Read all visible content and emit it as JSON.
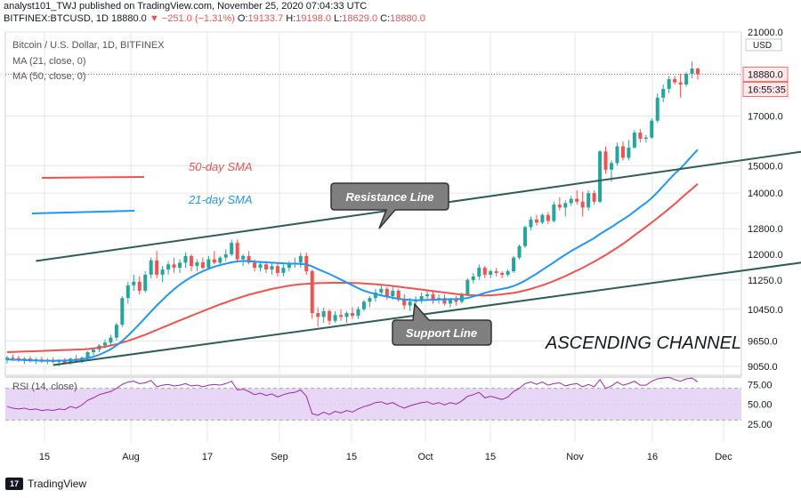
{
  "header": {
    "published": "analyst101_TWJ published on TradingView.com, November 25, 2020 07:04:33 UTC",
    "symbol": "BITFINEX:BTCUSD, 1D",
    "last": "18880.0",
    "change": "−251.0 (−1.31%)",
    "o_label": "O:",
    "o": "19133.7",
    "h_label": "H:",
    "h": "19198.0",
    "l_label": "L:",
    "l": "18629.0",
    "c_label": "C:",
    "c": "18880.0"
  },
  "legend": {
    "title": "Bitcoin / U.S. Dollar, 1D, BITFINEX",
    "ma21": "MA (21, close, 0)",
    "ma50": "MA (50, close, 0)"
  },
  "footer": {
    "brand": "TradingView",
    "logo_text": "17"
  },
  "colors": {
    "up": "#26a69a",
    "down": "#ef5350",
    "ma21": "#2196f3",
    "ma50": "#ef5350",
    "channel": "#2e5e55",
    "rsi_line": "#9c27b0",
    "rsi_band": "#e7d6f5",
    "grid": "#e6e6e6"
  },
  "chart_data": {
    "type": "candlestick",
    "price_axis": {
      "unit": "USD",
      "ticks": [
        "21000.0",
        "17000.0",
        "15000.0",
        "14000.0",
        "12800.0",
        "12000.0",
        "11250.0",
        "10450.0",
        "9650.0",
        "9050.0"
      ],
      "scale": "log"
    },
    "current_price_label": "18880.0",
    "countdown_label": "16:55:35",
    "x_ticks": [
      "15",
      "Aug",
      "17",
      "Sep",
      "15",
      "Oct",
      "15",
      "Nov",
      "16",
      "Dec"
    ],
    "candles": [
      [
        9200,
        9300,
        9120,
        9250
      ],
      [
        9250,
        9320,
        9170,
        9240
      ],
      [
        9240,
        9300,
        9150,
        9190
      ],
      [
        9190,
        9260,
        9110,
        9230
      ],
      [
        9230,
        9290,
        9140,
        9170
      ],
      [
        9170,
        9250,
        9110,
        9210
      ],
      [
        9210,
        9270,
        9130,
        9160
      ],
      [
        9160,
        9240,
        9100,
        9200
      ],
      [
        9200,
        9260,
        9120,
        9150
      ],
      [
        9150,
        9220,
        9060,
        9180
      ],
      [
        9180,
        9240,
        9110,
        9130
      ],
      [
        9130,
        9250,
        9090,
        9230
      ],
      [
        9230,
        9310,
        9150,
        9170
      ],
      [
        9170,
        9280,
        9120,
        9250
      ],
      [
        9250,
        9400,
        9200,
        9380
      ],
      [
        9380,
        9480,
        9300,
        9440
      ],
      [
        9440,
        9570,
        9380,
        9540
      ],
      [
        9540,
        9680,
        9470,
        9610
      ],
      [
        9610,
        9800,
        9550,
        9730
      ],
      [
        9730,
        10100,
        9660,
        10050
      ],
      [
        10050,
        10800,
        9990,
        10750
      ],
      [
        10750,
        11200,
        10600,
        11100
      ],
      [
        11100,
        11400,
        10950,
        11200
      ],
      [
        11200,
        11350,
        10850,
        10950
      ],
      [
        10950,
        11500,
        10900,
        11400
      ],
      [
        11400,
        11900,
        11300,
        11820
      ],
      [
        11820,
        12100,
        11300,
        11400
      ],
      [
        11400,
        11650,
        11180,
        11550
      ],
      [
        11550,
        11800,
        11400,
        11700
      ],
      [
        11700,
        11900,
        11450,
        11600
      ],
      [
        11600,
        11850,
        11450,
        11750
      ],
      [
        11750,
        12050,
        11600,
        11950
      ],
      [
        11950,
        12000,
        11500,
        11650
      ],
      [
        11650,
        11850,
        11500,
        11760
      ],
      [
        11760,
        11900,
        11550,
        11600
      ],
      [
        11600,
        11950,
        11550,
        11850
      ],
      [
        11850,
        12100,
        11700,
        11750
      ],
      [
        11750,
        11950,
        11650,
        11900
      ],
      [
        11900,
        12150,
        11800,
        12000
      ],
      [
        12000,
        12450,
        11950,
        12350
      ],
      [
        12350,
        12450,
        11750,
        11850
      ],
      [
        11850,
        12000,
        11650,
        11950
      ],
      [
        11950,
        12100,
        11700,
        11750
      ],
      [
        11750,
        11850,
        11500,
        11600
      ],
      [
        11600,
        11800,
        11500,
        11700
      ],
      [
        11700,
        11800,
        11450,
        11550
      ],
      [
        11550,
        11750,
        11400,
        11650
      ],
      [
        11650,
        11720,
        11350,
        11450
      ],
      [
        11450,
        11700,
        11350,
        11600
      ],
      [
        11600,
        11800,
        11500,
        11700
      ],
      [
        11700,
        11900,
        11600,
        11750
      ],
      [
        11750,
        12050,
        11600,
        11950
      ],
      [
        11950,
        12050,
        11400,
        11500
      ],
      [
        11500,
        11550,
        10200,
        10350
      ],
      [
        10350,
        10500,
        10000,
        10250
      ],
      [
        10250,
        10500,
        10100,
        10400
      ],
      [
        10400,
        10450,
        10050,
        10150
      ],
      [
        10150,
        10400,
        10100,
        10300
      ],
      [
        10300,
        10450,
        10150,
        10250
      ],
      [
        10250,
        10400,
        10100,
        10350
      ],
      [
        10350,
        10500,
        10200,
        10280
      ],
      [
        10280,
        10520,
        10200,
        10450
      ],
      [
        10450,
        10700,
        10400,
        10650
      ],
      [
        10650,
        10800,
        10500,
        10750
      ],
      [
        10750,
        11000,
        10650,
        10900
      ],
      [
        10900,
        11100,
        10800,
        11000
      ],
      [
        11000,
        11050,
        10700,
        10800
      ],
      [
        10800,
        11050,
        10700,
        10950
      ],
      [
        10950,
        11000,
        10650,
        10700
      ],
      [
        10700,
        10850,
        10450,
        10550
      ],
      [
        10550,
        10750,
        10400,
        10650
      ],
      [
        10650,
        10800,
        10500,
        10700
      ],
      [
        10700,
        10900,
        10600,
        10800
      ],
      [
        10800,
        10950,
        10700,
        10850
      ],
      [
        10850,
        10950,
        10600,
        10700
      ],
      [
        10700,
        10850,
        10600,
        10750
      ],
      [
        10750,
        10850,
        10550,
        10600
      ],
      [
        10600,
        10750,
        10500,
        10700
      ],
      [
        10700,
        10800,
        10550,
        10650
      ],
      [
        10650,
        10900,
        10600,
        10850
      ],
      [
        10850,
        11300,
        10800,
        11250
      ],
      [
        11250,
        11450,
        11150,
        11350
      ],
      [
        11350,
        11700,
        11250,
        11600
      ],
      [
        11600,
        11650,
        11300,
        11400
      ],
      [
        11400,
        11550,
        11300,
        11500
      ],
      [
        11500,
        11600,
        11350,
        11450
      ],
      [
        11450,
        11500,
        11300,
        11400
      ],
      [
        11400,
        11550,
        11350,
        11500
      ],
      [
        11500,
        11950,
        11450,
        11900
      ],
      [
        11900,
        12300,
        11850,
        12250
      ],
      [
        12250,
        12900,
        12200,
        12850
      ],
      [
        12850,
        13200,
        12750,
        13100
      ],
      [
        13100,
        13250,
        12900,
        13000
      ],
      [
        13000,
        13300,
        12950,
        13250
      ],
      [
        13250,
        13350,
        12950,
        13050
      ],
      [
        13050,
        13700,
        13000,
        13600
      ],
      [
        13600,
        13850,
        13400,
        13500
      ],
      [
        13500,
        13750,
        13200,
        13650
      ],
      [
        13650,
        13900,
        13550,
        13800
      ],
      [
        13800,
        14100,
        13600,
        13700
      ],
      [
        13700,
        14050,
        13200,
        13500
      ],
      [
        13500,
        14100,
        13400,
        14000
      ],
      [
        14000,
        14100,
        13600,
        13700
      ],
      [
        13700,
        15600,
        13650,
        15550
      ],
      [
        15550,
        15750,
        14700,
        14850
      ],
      [
        14850,
        15200,
        14400,
        15100
      ],
      [
        15100,
        15900,
        15000,
        15750
      ],
      [
        15750,
        15950,
        15200,
        15300
      ],
      [
        15300,
        16000,
        15200,
        15700
      ],
      [
        15700,
        16400,
        15650,
        16300
      ],
      [
        16300,
        16450,
        15900,
        16050
      ],
      [
        16050,
        16200,
        15900,
        16100
      ],
      [
        16100,
        16900,
        16050,
        16800
      ],
      [
        16800,
        18000,
        16700,
        17800
      ],
      [
        17800,
        18400,
        17600,
        18200
      ],
      [
        18200,
        18800,
        18000,
        18650
      ],
      [
        18650,
        18800,
        18400,
        18500
      ],
      [
        18500,
        18900,
        17800,
        18400
      ],
      [
        18400,
        19000,
        18300,
        18900
      ],
      [
        18900,
        19500,
        18700,
        19150
      ],
      [
        19150,
        19200,
        18630,
        18880
      ]
    ],
    "ma21": [
      9210,
      9205,
      9200,
      9195,
      9190,
      9185,
      9180,
      9180,
      9180,
      9180,
      9185,
      9190,
      9200,
      9215,
      9240,
      9270,
      9320,
      9380,
      9450,
      9540,
      9650,
      9780,
      9920,
      10070,
      10230,
      10390,
      10550,
      10700,
      10850,
      10990,
      11120,
      11230,
      11330,
      11420,
      11500,
      11570,
      11630,
      11680,
      11720,
      11760,
      11790,
      11800,
      11800,
      11780,
      11770,
      11760,
      11750,
      11740,
      11730,
      11720,
      11720,
      11710,
      11700,
      11640,
      11560,
      11490,
      11420,
      11340,
      11260,
      11180,
      11100,
      11020,
      10950,
      10900,
      10860,
      10820,
      10790,
      10760,
      10730,
      10710,
      10700,
      10690,
      10690,
      10700,
      10700,
      10710,
      10710,
      10720,
      10720,
      10730,
      10750,
      10790,
      10840,
      10890,
      10930,
      10970,
      11000,
      11030,
      11080,
      11150,
      11230,
      11330,
      11430,
      11540,
      11650,
      11760,
      11880,
      11990,
      12100,
      12200,
      12300,
      12400,
      12500,
      12630,
      12740,
      12850,
      12980,
      13100,
      13220,
      13370,
      13520,
      13660,
      13830,
      14030,
      14250,
      14480,
      14700,
      14900,
      15130,
      15380,
      15620
    ],
    "ma50": [
      9380,
      9385,
      9390,
      9395,
      9400,
      9405,
      9410,
      9415,
      9420,
      9425,
      9430,
      9435,
      9440,
      9445,
      9455,
      9470,
      9490,
      9510,
      9540,
      9570,
      9610,
      9650,
      9700,
      9750,
      9800,
      9860,
      9920,
      9980,
      10040,
      10100,
      10160,
      10220,
      10280,
      10340,
      10400,
      10460,
      10520,
      10580,
      10630,
      10690,
      10740,
      10790,
      10840,
      10880,
      10920,
      10960,
      11000,
      11030,
      11060,
      11090,
      11110,
      11130,
      11140,
      11150,
      11160,
      11165,
      11170,
      11170,
      11170,
      11170,
      11165,
      11160,
      11150,
      11140,
      11130,
      11115,
      11100,
      11080,
      11060,
      11040,
      11020,
      11000,
      10980,
      10960,
      10940,
      10920,
      10900,
      10880,
      10860,
      10845,
      10830,
      10825,
      10820,
      10820,
      10825,
      10835,
      10850,
      10870,
      10890,
      10920,
      10960,
      11000,
      11050,
      11100,
      11160,
      11220,
      11290,
      11360,
      11440,
      11520,
      11600,
      11690,
      11780,
      11880,
      11980,
      12090,
      12200,
      12320,
      12450,
      12590,
      12720,
      12860,
      13000,
      13150,
      13300,
      13460,
      13620,
      13800,
      13980,
      14150,
      14330
    ],
    "rsi": {
      "label": "RSI (14, close)",
      "ticks": [
        "75.00",
        "50.00",
        "25.00"
      ],
      "band": [
        30,
        70
      ],
      "values": [
        47,
        45,
        44,
        45,
        43,
        44,
        42,
        43,
        42,
        44,
        43,
        47,
        45,
        49,
        55,
        58,
        62,
        64,
        66,
        70,
        75,
        78,
        79,
        76,
        77,
        80,
        72,
        74,
        75,
        73,
        74,
        76,
        73,
        74,
        72,
        74,
        75,
        74,
        76,
        79,
        68,
        69,
        66,
        62,
        64,
        61,
        63,
        59,
        62,
        64,
        65,
        68,
        60,
        38,
        36,
        40,
        37,
        41,
        39,
        42,
        40,
        44,
        47,
        49,
        52,
        53,
        50,
        52,
        48,
        45,
        48,
        50,
        52,
        53,
        50,
        52,
        49,
        52,
        50,
        54,
        60,
        62,
        65,
        58,
        60,
        58,
        56,
        59,
        66,
        70,
        76,
        78,
        75,
        78,
        74,
        76,
        77,
        73,
        75,
        76,
        72,
        75,
        72,
        81,
        70,
        73,
        78,
        74,
        76,
        79,
        74,
        74,
        79,
        82,
        83,
        84,
        81,
        79,
        82,
        83,
        78
      ]
    },
    "channel": {
      "upper": {
        "start": {
          "bar": 5,
          "price": 11800
        },
        "end": {
          "bar": 140,
          "price": 15600
        }
      },
      "lower": {
        "start": {
          "bar": 8,
          "price": 9080
        },
        "end": {
          "bar": 140,
          "price": 11800
        }
      }
    },
    "annotations": {
      "resistance": "Resistance Line",
      "support": "Support Line",
      "title": "ASCENDING CHANNEL",
      "sma50": "50-day SMA",
      "sma21": "21-day SMA"
    }
  }
}
